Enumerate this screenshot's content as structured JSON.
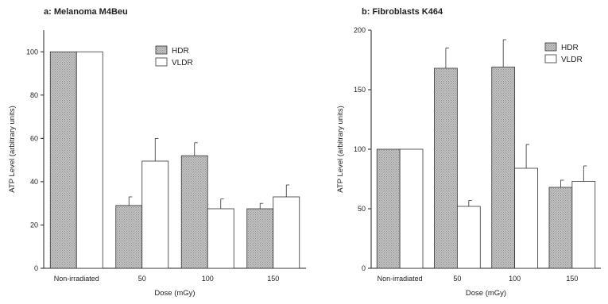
{
  "chart_data": [
    {
      "type": "bar",
      "title": "a: Melanoma M4Beu",
      "xlabel": "Dose (mGy)",
      "ylabel": "ATP Level (arbitrary units)",
      "categories": [
        "Non-irradiated",
        "50",
        "100",
        "150"
      ],
      "ylim": [
        0,
        110
      ],
      "yticks": [
        0,
        20,
        40,
        60,
        80,
        100
      ],
      "legend_position": "top-right",
      "series": [
        {
          "name": "HDR",
          "values": [
            100,
            29,
            52,
            27.5
          ],
          "errors": [
            0,
            4,
            6,
            2.5
          ],
          "pattern": "hatched-gray"
        },
        {
          "name": "VLDR",
          "values": [
            100,
            49.5,
            27.5,
            33
          ],
          "errors": [
            0,
            10.5,
            4.5,
            5.5
          ],
          "pattern": "white"
        }
      ]
    },
    {
      "type": "bar",
      "title": "b: Fibroblasts K464",
      "xlabel": "Dose (mGy)",
      "ylabel": "ATP Level (arbitrary units)",
      "categories": [
        "Non-irradiated",
        "50",
        "100",
        "150"
      ],
      "ylim": [
        0,
        200
      ],
      "yticks": [
        0,
        50,
        100,
        150,
        200
      ],
      "legend_position": "top-right",
      "series": [
        {
          "name": "HDR",
          "values": [
            100,
            168,
            169,
            68
          ],
          "errors": [
            0,
            17,
            23,
            6
          ],
          "pattern": "hatched-gray"
        },
        {
          "name": "VLDR",
          "values": [
            100,
            52,
            84,
            73
          ],
          "errors": [
            0,
            5,
            20,
            13
          ],
          "pattern": "white"
        }
      ]
    }
  ]
}
